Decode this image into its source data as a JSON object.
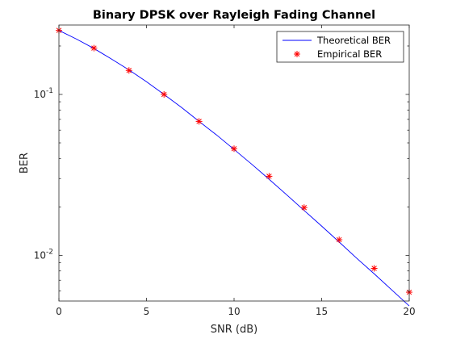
{
  "chart_data": {
    "type": "line",
    "title": "Binary DPSK over Rayleigh Fading Channel",
    "xlabel": "SNR (dB)",
    "ylabel": "BER",
    "xlim": [
      0,
      20
    ],
    "ylim": [
      0.0052,
      0.27
    ],
    "yscale": "log",
    "grid": false,
    "legend_position": "top-right",
    "x_ticks": [
      0,
      5,
      10,
      15,
      20
    ],
    "y_ticks": [
      {
        "value": 0.01,
        "base": "10",
        "exp": "-2"
      },
      {
        "value": 0.1,
        "base": "10",
        "exp": "-1"
      }
    ],
    "series": [
      {
        "name": "Theoretical BER",
        "style": "line",
        "color": "#0000ff",
        "x": [
          0,
          1,
          2,
          3,
          4,
          5,
          6,
          7,
          8,
          9,
          10,
          11,
          12,
          13,
          14,
          15,
          16,
          17,
          18,
          19,
          20
        ],
        "values": [
          0.25,
          0.221,
          0.193,
          0.166,
          0.142,
          0.12,
          0.1,
          0.083,
          0.068,
          0.056,
          0.0455,
          0.0369,
          0.0297,
          0.0238,
          0.019,
          0.0152,
          0.0121,
          0.0096,
          0.00768,
          0.0061,
          0.00485
        ]
      },
      {
        "name": "Empirical BER",
        "style": "marker",
        "marker": "asterisk",
        "color": "#ff0000",
        "x": [
          0,
          2,
          4,
          6,
          8,
          10,
          12,
          14,
          16,
          18,
          20
        ],
        "values": [
          0.25,
          0.194,
          0.141,
          0.1,
          0.068,
          0.046,
          0.031,
          0.0198,
          0.0125,
          0.0083,
          0.0059
        ]
      }
    ]
  }
}
